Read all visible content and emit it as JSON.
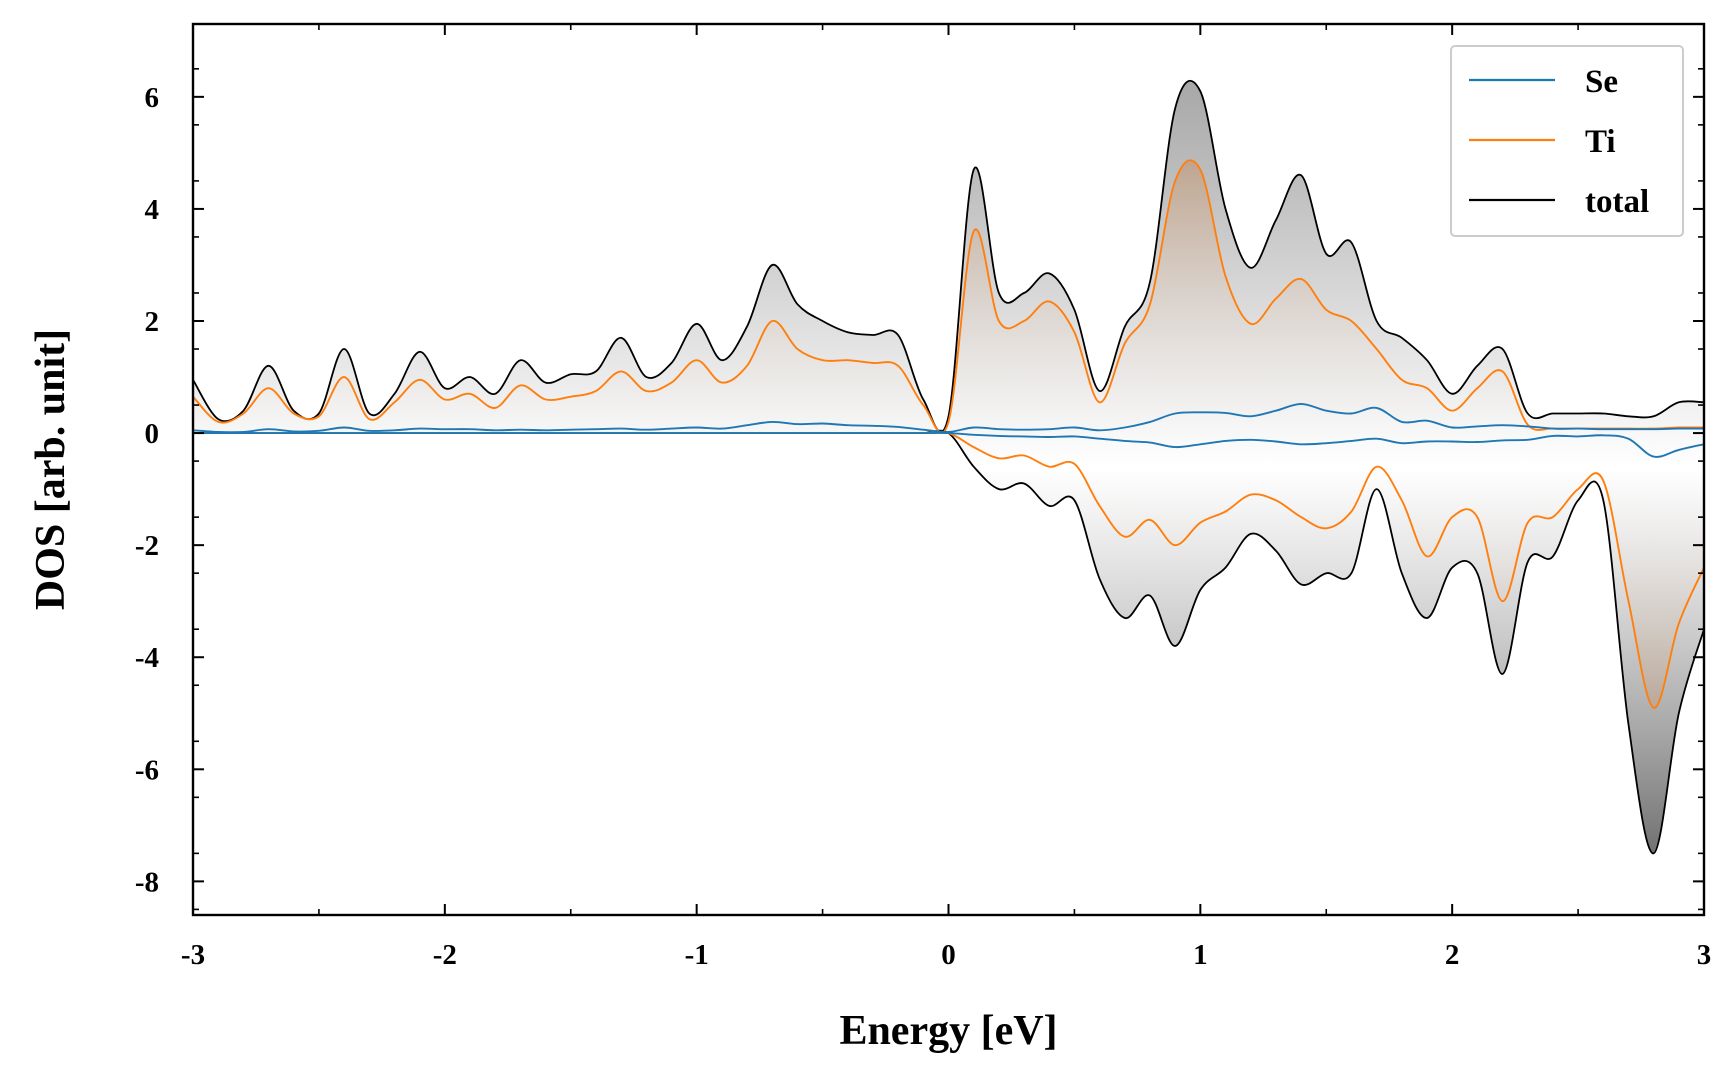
{
  "chart_data": {
    "type": "area",
    "xlabel": "Energy [eV]",
    "ylabel": "DOS [arb. unit]",
    "xlim": [
      -3,
      3
    ],
    "ylim": [
      -8.6,
      7.3
    ],
    "xticks": [
      -3,
      -2,
      -1,
      0,
      1,
      2,
      3
    ],
    "yticks": [
      -8,
      -6,
      -4,
      -2,
      0,
      2,
      4,
      6
    ],
    "legend": {
      "placement": "top-right",
      "entries": [
        "Se",
        "Ti",
        "total"
      ]
    },
    "grid": false,
    "x": [
      -3.0,
      -2.9,
      -2.8,
      -2.7,
      -2.6,
      -2.5,
      -2.4,
      -2.3,
      -2.2,
      -2.1,
      -2.0,
      -1.9,
      -1.8,
      -1.7,
      -1.6,
      -1.5,
      -1.4,
      -1.3,
      -1.2,
      -1.1,
      -1.0,
      -0.9,
      -0.8,
      -0.7,
      -0.6,
      -0.5,
      -0.4,
      -0.3,
      -0.2,
      -0.1,
      0.0,
      0.1,
      0.2,
      0.3,
      0.4,
      0.5,
      0.6,
      0.7,
      0.8,
      0.9,
      1.0,
      1.1,
      1.2,
      1.3,
      1.4,
      1.5,
      1.6,
      1.7,
      1.8,
      1.9,
      2.0,
      2.1,
      2.2,
      2.3,
      2.4,
      2.5,
      2.6,
      2.7,
      2.8,
      2.9,
      3.0
    ],
    "series": [
      {
        "name": "Se",
        "color": "#1f77b4",
        "up": [
          0.05,
          0.02,
          0.02,
          0.07,
          0.03,
          0.04,
          0.1,
          0.04,
          0.05,
          0.08,
          0.07,
          0.07,
          0.05,
          0.06,
          0.05,
          0.06,
          0.07,
          0.08,
          0.06,
          0.08,
          0.1,
          0.08,
          0.14,
          0.2,
          0.16,
          0.17,
          0.14,
          0.13,
          0.11,
          0.06,
          0.02,
          0.1,
          0.07,
          0.06,
          0.07,
          0.1,
          0.05,
          0.1,
          0.2,
          0.35,
          0.37,
          0.36,
          0.3,
          0.4,
          0.52,
          0.4,
          0.35,
          0.45,
          0.2,
          0.22,
          0.1,
          0.12,
          0.14,
          0.12,
          0.08,
          0.08,
          0.07,
          0.07,
          0.07,
          0.08,
          0.08
        ],
        "down": [
          0,
          0,
          0,
          0,
          0,
          0,
          0,
          0,
          0,
          0,
          0,
          0,
          0,
          0,
          0,
          0,
          0,
          0,
          0,
          0,
          0,
          0,
          0,
          0,
          0,
          0,
          0,
          0,
          0,
          0,
          0,
          -0.03,
          -0.05,
          -0.06,
          -0.07,
          -0.06,
          -0.1,
          -0.14,
          -0.17,
          -0.25,
          -0.2,
          -0.14,
          -0.12,
          -0.15,
          -0.2,
          -0.18,
          -0.14,
          -0.1,
          -0.18,
          -0.15,
          -0.15,
          -0.16,
          -0.13,
          -0.12,
          -0.05,
          -0.06,
          -0.04,
          -0.1,
          -0.42,
          -0.3,
          -0.2
        ]
      },
      {
        "name": "Ti",
        "color": "#ff7f0e",
        "up": [
          0.65,
          0.2,
          0.35,
          0.8,
          0.35,
          0.3,
          1.0,
          0.25,
          0.55,
          0.95,
          0.6,
          0.7,
          0.45,
          0.85,
          0.6,
          0.65,
          0.75,
          1.1,
          0.75,
          0.9,
          1.3,
          0.9,
          1.2,
          2.0,
          1.5,
          1.3,
          1.3,
          1.25,
          1.2,
          0.5,
          0.2,
          3.6,
          2.0,
          2.0,
          2.35,
          1.8,
          0.55,
          1.6,
          2.3,
          4.5,
          4.7,
          2.8,
          1.95,
          2.4,
          2.75,
          2.2,
          2.0,
          1.5,
          0.95,
          0.8,
          0.4,
          0.8,
          1.1,
          0.15,
          0.08,
          0.08,
          0.08,
          0.08,
          0.08,
          0.1,
          0.1
        ],
        "down": [
          0,
          0,
          0,
          0,
          0,
          0,
          0,
          0,
          0,
          0,
          0,
          0,
          0,
          0,
          0,
          0,
          0,
          0,
          0,
          0,
          0,
          0,
          0,
          0,
          0,
          0,
          0,
          0,
          0,
          0,
          0,
          -0.25,
          -0.45,
          -0.4,
          -0.6,
          -0.55,
          -1.3,
          -1.85,
          -1.55,
          -2.0,
          -1.6,
          -1.4,
          -1.1,
          -1.2,
          -1.5,
          -1.7,
          -1.4,
          -0.6,
          -1.2,
          -2.2,
          -1.5,
          -1.5,
          -3.0,
          -1.6,
          -1.5,
          -1.0,
          -0.85,
          -3.0,
          -4.9,
          -3.4,
          -2.4
        ]
      },
      {
        "name": "total",
        "color": "#000000",
        "up": [
          0.95,
          0.25,
          0.4,
          1.2,
          0.4,
          0.35,
          1.5,
          0.35,
          0.7,
          1.45,
          0.8,
          1.0,
          0.7,
          1.3,
          0.9,
          1.05,
          1.1,
          1.7,
          1.0,
          1.25,
          1.95,
          1.3,
          1.9,
          3.0,
          2.3,
          2.0,
          1.8,
          1.75,
          1.75,
          0.6,
          0.3,
          4.7,
          2.5,
          2.5,
          2.85,
          2.2,
          0.75,
          1.9,
          2.7,
          5.8,
          6.1,
          4.0,
          2.95,
          3.8,
          4.6,
          3.2,
          3.4,
          2.0,
          1.7,
          1.3,
          0.7,
          1.2,
          1.5,
          0.35,
          0.35,
          0.35,
          0.35,
          0.3,
          0.3,
          0.55,
          0.55
        ],
        "down": [
          0,
          0,
          0,
          0,
          0,
          0,
          0,
          0,
          0,
          0,
          0,
          0,
          0,
          0,
          0,
          0,
          0,
          0,
          0,
          0,
          0,
          0,
          0,
          0,
          0,
          0,
          0,
          0,
          0,
          0,
          0,
          -0.6,
          -1.0,
          -0.9,
          -1.3,
          -1.2,
          -2.6,
          -3.3,
          -2.9,
          -3.8,
          -2.8,
          -2.4,
          -1.8,
          -2.1,
          -2.7,
          -2.5,
          -2.5,
          -1.0,
          -2.5,
          -3.3,
          -2.4,
          -2.5,
          -4.3,
          -2.3,
          -2.2,
          -1.2,
          -1.2,
          -5.2,
          -7.5,
          -5.0,
          -3.5
        ]
      }
    ]
  }
}
